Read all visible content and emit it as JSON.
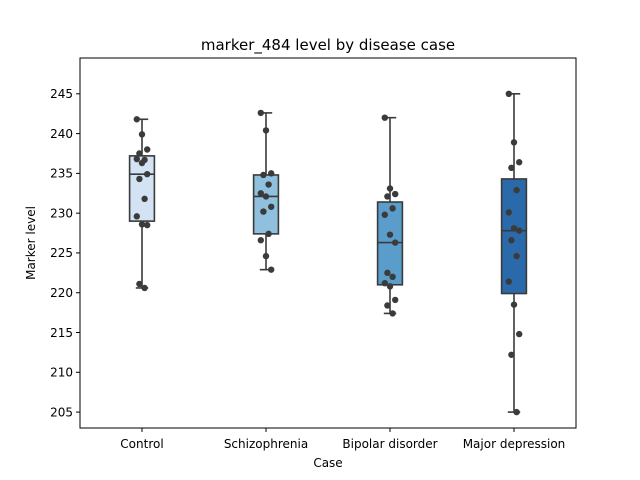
{
  "chart_data": {
    "type": "box",
    "title": "marker_484 level by disease case",
    "xlabel": "Case",
    "ylabel": "Marker level",
    "categories": [
      "Control",
      "Schizophrenia",
      "Bipolar disorder",
      "Major depression"
    ],
    "ylim": [
      203,
      249.5
    ],
    "yticks": [
      205,
      210,
      215,
      220,
      225,
      230,
      235,
      240,
      245
    ],
    "grid": false,
    "legend": "none",
    "colors": [
      "#d3e3f3",
      "#8fc1de",
      "#5a9dcb",
      "#2a6aaa"
    ],
    "boxes": [
      {
        "category": "Control",
        "whisker_low": 220.6,
        "q1": 229.0,
        "median": 234.9,
        "q3": 237.2,
        "whisker_high": 241.8
      },
      {
        "category": "Schizophrenia",
        "whisker_low": 222.9,
        "q1": 227.4,
        "median": 232.1,
        "q3": 234.8,
        "whisker_high": 242.6
      },
      {
        "category": "Bipolar disorder",
        "whisker_low": 217.4,
        "q1": 221.0,
        "median": 226.3,
        "q3": 231.4,
        "whisker_high": 242.0
      },
      {
        "category": "Major depression",
        "whisker_low": 205.0,
        "q1": 219.9,
        "median": 227.8,
        "q3": 234.3,
        "whisker_high": 245.0
      }
    ],
    "points": [
      [
        241.8,
        239.9,
        238.0,
        237.5,
        236.7,
        236.8,
        236.3,
        234.9,
        234.3,
        231.8,
        229.6,
        228.6,
        228.5,
        221.1,
        220.6
      ],
      [
        242.6,
        240.4,
        235.0,
        234.8,
        233.6,
        232.5,
        232.1,
        230.8,
        230.2,
        227.4,
        226.6,
        224.6,
        222.9
      ],
      [
        242.0,
        233.1,
        232.4,
        232.1,
        230.6,
        229.8,
        227.3,
        226.3,
        222.5,
        222.0,
        221.2,
        220.8,
        219.1,
        218.4,
        217.4
      ],
      [
        245.0,
        238.9,
        236.4,
        235.7,
        232.9,
        230.1,
        228.1,
        227.8,
        226.6,
        224.6,
        221.4,
        218.5,
        214.8,
        212.2,
        205.0
      ]
    ]
  }
}
